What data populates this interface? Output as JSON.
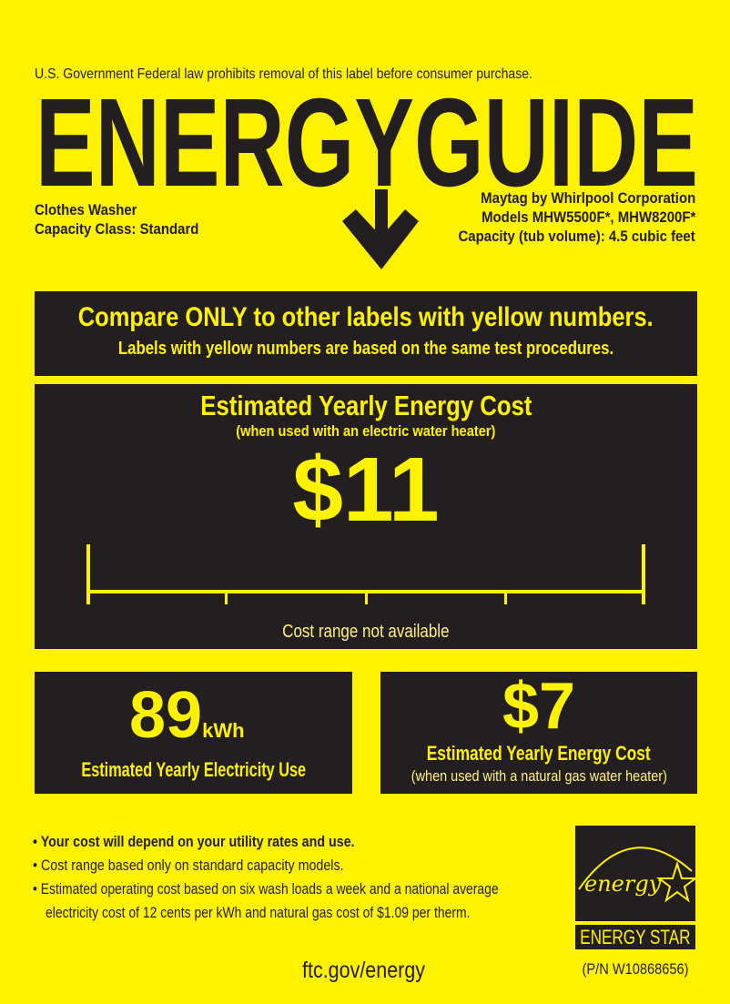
{
  "header": {
    "government_notice": "U.S. Government  Federal law prohibits removal of this label before consumer purchase.",
    "logo_text": "ENERGYGUIDE",
    "product_type": "Clothes Washer",
    "capacity_class": "Capacity Class: Standard",
    "manufacturer": "Maytag by Whirlpool Corporation",
    "models": "Models MHW5500F*, MHW8200F*",
    "capacity": "Capacity (tub volume): 4.5 cubic feet"
  },
  "compare": {
    "headline": "Compare ONLY to other labels with yellow numbers.",
    "subline": "Labels with yellow numbers are based on the same test procedures."
  },
  "main_cost": {
    "title": "Estimated Yearly Energy Cost",
    "subtitle": "(when used with an electric water heater)",
    "value": "$11",
    "range_note": "Cost range not available"
  },
  "electricity": {
    "value": "89",
    "unit": "kWh",
    "label": "Estimated Yearly Electricity Use"
  },
  "gas_cost": {
    "value": "$7",
    "label": "Estimated Yearly Energy Cost",
    "sublabel": "(when used with a natural gas water heater)"
  },
  "notes": [
    "Your cost will depend on your utility rates and use.",
    "Cost range based only on standard capacity models.",
    "Estimated operating cost based on six wash loads a week and a national average",
    "electricity cost of 12 cents per kWh and natural gas cost of $1.09 per therm."
  ],
  "footer": {
    "website": "ftc.gov/energy",
    "part_number": "(P/N W10868656)"
  },
  "energy_star": {
    "script": "energy",
    "label": "ENERGY STAR"
  },
  "colors": {
    "background": "#fff200",
    "dark": "#231f20"
  }
}
